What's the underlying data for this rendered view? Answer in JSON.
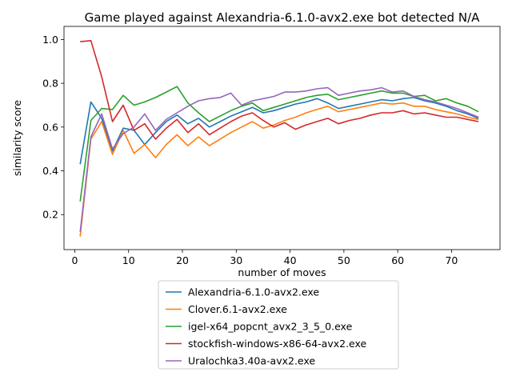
{
  "chart_data": {
    "type": "line",
    "title": "Game played against Alexandria-6.1.0-avx2.exe bot detected N/A",
    "xlabel": "number of moves",
    "ylabel": "similarity score",
    "xlim": [
      -2,
      79
    ],
    "ylim": [
      0.04,
      1.06
    ],
    "xticks": [
      0,
      10,
      20,
      30,
      40,
      50,
      60,
      70
    ],
    "yticks": [
      0.2,
      0.4,
      0.6,
      0.8,
      1.0
    ],
    "ytick_labels": [
      "0.2",
      "0.4",
      "0.6",
      "0.8",
      "1.0"
    ],
    "grid": false,
    "legend_position": "below plot, center",
    "x": [
      1,
      3,
      5,
      7,
      9,
      11,
      13,
      15,
      17,
      19,
      21,
      23,
      25,
      27,
      29,
      31,
      33,
      35,
      37,
      39,
      41,
      43,
      45,
      47,
      49,
      51,
      53,
      55,
      57,
      59,
      61,
      63,
      65,
      67,
      69,
      71,
      73,
      75
    ],
    "series": [
      {
        "name": "Alexandria-6.1.0-avx2.exe",
        "color": "#1f77b4",
        "values": [
          0.43,
          0.715,
          0.64,
          0.49,
          0.595,
          0.585,
          0.52,
          0.575,
          0.625,
          0.655,
          0.615,
          0.64,
          0.6,
          0.625,
          0.65,
          0.67,
          0.69,
          0.665,
          0.675,
          0.69,
          0.705,
          0.715,
          0.73,
          0.71,
          0.685,
          0.695,
          0.705,
          0.715,
          0.725,
          0.72,
          0.73,
          0.735,
          0.72,
          0.71,
          0.695,
          0.675,
          0.66,
          0.64
        ]
      },
      {
        "name": "Clover.6.1-avx2.exe",
        "color": "#ff7f0e",
        "values": [
          0.1,
          0.545,
          0.625,
          0.475,
          0.585,
          0.48,
          0.52,
          0.46,
          0.52,
          0.565,
          0.515,
          0.555,
          0.515,
          0.545,
          0.575,
          0.6,
          0.625,
          0.595,
          0.61,
          0.63,
          0.645,
          0.665,
          0.68,
          0.695,
          0.67,
          0.68,
          0.69,
          0.7,
          0.71,
          0.705,
          0.71,
          0.695,
          0.695,
          0.68,
          0.67,
          0.66,
          0.645,
          0.635
        ]
      },
      {
        "name": "igel-x64_popcnt_avx2_3_5_0.exe",
        "color": "#2ca02c",
        "values": [
          0.26,
          0.63,
          0.685,
          0.68,
          0.745,
          0.7,
          0.715,
          0.735,
          0.76,
          0.785,
          0.71,
          0.665,
          0.625,
          0.65,
          0.675,
          0.695,
          0.71,
          0.675,
          0.69,
          0.705,
          0.72,
          0.735,
          0.745,
          0.75,
          0.725,
          0.735,
          0.745,
          0.755,
          0.765,
          0.755,
          0.755,
          0.74,
          0.745,
          0.72,
          0.73,
          0.71,
          0.695,
          0.67
        ]
      },
      {
        "name": "stockfish-windows-x86-64-avx2.exe",
        "color": "#d62728",
        "values": [
          0.99,
          0.995,
          0.83,
          0.625,
          0.7,
          0.585,
          0.615,
          0.545,
          0.595,
          0.635,
          0.575,
          0.615,
          0.565,
          0.595,
          0.625,
          0.65,
          0.665,
          0.63,
          0.6,
          0.62,
          0.59,
          0.61,
          0.625,
          0.64,
          0.615,
          0.63,
          0.64,
          0.655,
          0.665,
          0.665,
          0.675,
          0.66,
          0.665,
          0.655,
          0.645,
          0.645,
          0.635,
          0.625
        ]
      },
      {
        "name": "Uralochka3.40a-avx2.exe",
        "color": "#9467bd",
        "values": [
          0.12,
          0.555,
          0.66,
          0.5,
          0.57,
          0.6,
          0.66,
          0.585,
          0.635,
          0.665,
          0.695,
          0.72,
          0.73,
          0.735,
          0.755,
          0.7,
          0.72,
          0.73,
          0.74,
          0.76,
          0.76,
          0.765,
          0.775,
          0.78,
          0.745,
          0.755,
          0.765,
          0.77,
          0.78,
          0.76,
          0.765,
          0.74,
          0.725,
          0.715,
          0.7,
          0.685,
          0.665,
          0.645
        ]
      }
    ]
  }
}
